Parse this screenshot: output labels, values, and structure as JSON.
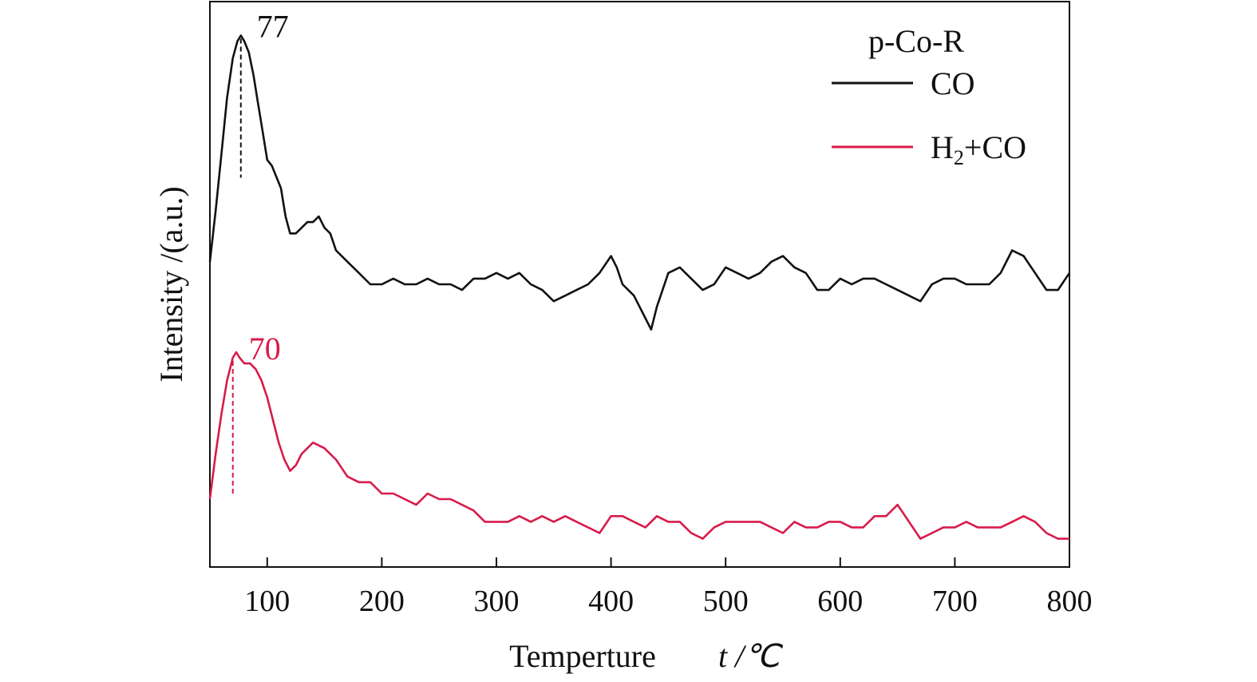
{
  "chart_data": {
    "type": "line",
    "title": "",
    "xlabel": "Temperture",
    "xlabel_unit": "t /℃",
    "ylabel": "Intensity /(a.u.)",
    "xlim": [
      50,
      800
    ],
    "ylim": [
      0,
      100
    ],
    "xticks": [
      100,
      200,
      300,
      400,
      500,
      600,
      700,
      800
    ],
    "y_tick_labels": false,
    "grid": false,
    "legend": {
      "title": "p-Co-R",
      "placement": "top-right",
      "entries": [
        "CO",
        "H2+CO"
      ]
    },
    "series": [
      {
        "name": "CO",
        "color": "#111111",
        "x": [
          50,
          55,
          60,
          65,
          70,
          74,
          77,
          80,
          84,
          88,
          92,
          96,
          100,
          104,
          108,
          112,
          116,
          120,
          125,
          130,
          135,
          140,
          145,
          150,
          155,
          160,
          170,
          180,
          190,
          200,
          210,
          220,
          230,
          240,
          250,
          260,
          270,
          280,
          290,
          300,
          310,
          320,
          330,
          340,
          350,
          360,
          370,
          380,
          390,
          400,
          405,
          410,
          420,
          430,
          435,
          440,
          450,
          460,
          470,
          480,
          490,
          500,
          510,
          520,
          530,
          540,
          550,
          560,
          570,
          580,
          590,
          600,
          610,
          620,
          630,
          640,
          650,
          660,
          670,
          680,
          690,
          700,
          710,
          720,
          730,
          740,
          750,
          760,
          770,
          780,
          790,
          800
        ],
        "y": [
          54,
          63,
          73,
          83,
          90,
          93,
          94,
          93,
          91,
          87,
          82,
          77,
          72,
          71,
          69,
          67,
          62,
          59,
          59,
          60,
          61,
          61,
          62,
          60,
          59,
          56,
          54,
          52,
          50,
          50,
          51,
          50,
          50,
          51,
          50,
          50,
          49,
          51,
          51,
          52,
          51,
          52,
          50,
          49,
          47,
          48,
          49,
          50,
          52,
          55,
          53,
          50,
          48,
          44,
          42,
          46,
          52,
          53,
          51,
          49,
          50,
          53,
          52,
          51,
          52,
          54,
          55,
          53,
          52,
          49,
          49,
          51,
          50,
          51,
          51,
          50,
          49,
          48,
          47,
          50,
          51,
          51,
          50,
          50,
          50,
          52,
          56,
          55,
          52,
          49,
          49,
          52
        ]
      },
      {
        "name": "H2+CO",
        "color": "#d81b4a",
        "x": [
          50,
          55,
          60,
          65,
          70,
          73,
          76,
          80,
          85,
          90,
          95,
          100,
          105,
          110,
          115,
          120,
          125,
          130,
          140,
          150,
          155,
          160,
          170,
          180,
          190,
          200,
          210,
          220,
          230,
          240,
          250,
          260,
          270,
          280,
          290,
          300,
          310,
          320,
          330,
          340,
          350,
          360,
          370,
          380,
          390,
          400,
          410,
          420,
          430,
          440,
          450,
          460,
          470,
          480,
          490,
          500,
          510,
          520,
          530,
          540,
          550,
          560,
          570,
          580,
          590,
          600,
          610,
          620,
          630,
          640,
          650,
          660,
          670,
          680,
          690,
          700,
          710,
          720,
          730,
          740,
          750,
          760,
          770,
          780,
          790,
          800
        ],
        "y": [
          12,
          20,
          27,
          33,
          37,
          38,
          37,
          36,
          36,
          35,
          33,
          30,
          26,
          22,
          19,
          17,
          18,
          20,
          22,
          21,
          20,
          19,
          16,
          15,
          15,
          13,
          13,
          12,
          11,
          13,
          12,
          12,
          11,
          10,
          8,
          8,
          8,
          9,
          8,
          9,
          8,
          9,
          8,
          7,
          6,
          9,
          9,
          8,
          7,
          9,
          8,
          8,
          6,
          5,
          7,
          8,
          8,
          8,
          8,
          7,
          6,
          8,
          7,
          7,
          8,
          8,
          7,
          7,
          9,
          9,
          11,
          8,
          5,
          6,
          7,
          7,
          8,
          7,
          7,
          7,
          8,
          9,
          8,
          6,
          5,
          5
        ]
      }
    ],
    "annotations": [
      {
        "text": "77",
        "x": 77,
        "series": "CO",
        "color": "#111111"
      },
      {
        "text": "70",
        "x": 70,
        "series": "H2+CO",
        "color": "#d81b4a"
      }
    ]
  }
}
